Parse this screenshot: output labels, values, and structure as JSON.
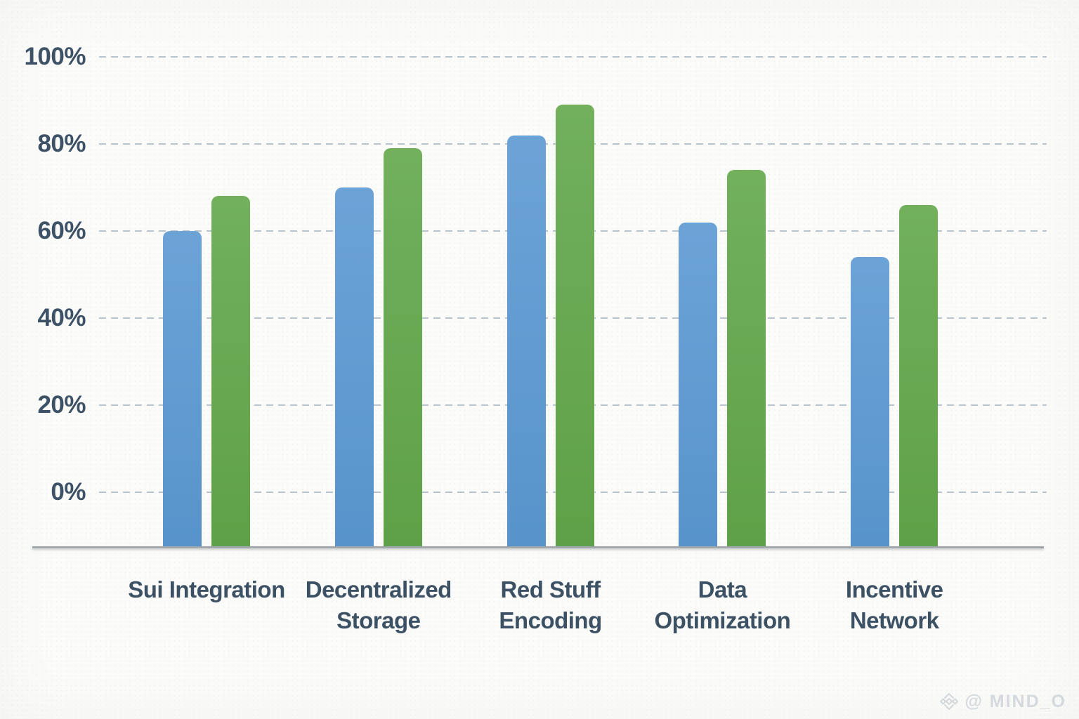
{
  "watermark": {
    "text": "@ MIND_O",
    "icon": "gem-icon",
    "color": "#d4d9dd"
  },
  "chart_data": {
    "type": "bar",
    "grouped": true,
    "title": "",
    "xlabel": "",
    "ylabel": "",
    "categories": [
      "Sui Integration",
      "Decentralized\nStorage",
      "Red Stuff\nEncoding",
      "Data\nOptimization",
      "Incentive\nNetwork"
    ],
    "series": [
      {
        "id": "blue-series",
        "color": "#5b99d3",
        "values": [
          60,
          70,
          82,
          62,
          54
        ]
      },
      {
        "id": "green-series",
        "color": "#62a74a",
        "values": [
          68,
          79,
          89,
          74,
          66
        ]
      }
    ],
    "values_unit": "percent",
    "y_axis": {
      "ticks": [
        100,
        80,
        60,
        40,
        20,
        0
      ],
      "labels": [
        "100%",
        "80%",
        "60%",
        "40%",
        "20%",
        "0%"
      ],
      "ylim": [
        0,
        100
      ],
      "grid": "dashed-horizontal",
      "gridline_color": "#b9c4cd",
      "label_color": "#3d5266"
    },
    "legend": null,
    "axis_line_color": "#a2a7ac",
    "background_color": "#fbfbf9"
  }
}
